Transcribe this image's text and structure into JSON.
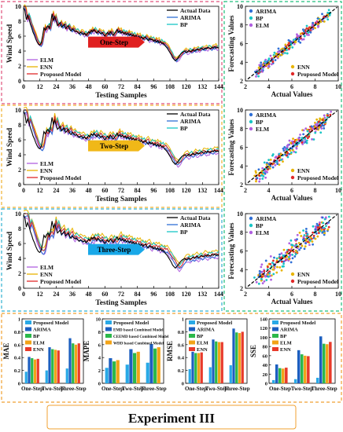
{
  "footer": {
    "label": "Experiment III"
  },
  "series_colors": {
    "Actual Data": "#000000",
    "ARIMA": "#2f6fd6",
    "BP": "#18c5c5",
    "ELM": "#b060e0",
    "ENN": "#e8b400",
    "Proposed Model": "#e02828"
  },
  "bar_colors": [
    "#29a9e6",
    "#1c5fbf",
    "#2bb84a",
    "#f2a318",
    "#e83a2a"
  ],
  "panel_border_colors": {
    "one": "#e0507a",
    "two": "#f0b030",
    "three": "#30b0d0",
    "scatter": "#1fbf7a",
    "bars": "#f0a030"
  },
  "chart_data": [
    {
      "type": "line",
      "id": "ts_one",
      "step_label": "One-Step",
      "arrow_color": "#e02020",
      "xlabel": "Testing Samples",
      "ylabel": "Wind Speed",
      "xlim": [
        0,
        144
      ],
      "ylim": [
        0,
        10
      ],
      "xticks": [
        "0",
        "12",
        "24",
        "36",
        "48",
        "60",
        "72",
        "84",
        "96",
        "108",
        "120",
        "132",
        "144"
      ],
      "yticks": [
        "0",
        "2",
        "4",
        "6",
        "8",
        "10"
      ],
      "legend_top": [
        "Actual Data",
        "ARIMA",
        "BP"
      ],
      "legend_bottom": [
        "ELM",
        "ENN",
        "Proposed Model"
      ],
      "actual": [
        9.8,
        9.4,
        8.2,
        8.8,
        8.3,
        7.6,
        7.1,
        6.5,
        6.1,
        5.6,
        5.2,
        4.9,
        4.8,
        5.1,
        6.0,
        7.1,
        6.8,
        7.2,
        7.4,
        7.0,
        7.8,
        9.0,
        8.1,
        8.6,
        8.0,
        7.4,
        7.6,
        7.8,
        7.2,
        7.4,
        7.6,
        7.0,
        7.2,
        7.4,
        6.9,
        6.7,
        7.0,
        6.8,
        6.6,
        6.7,
        6.5,
        6.3,
        6.5,
        6.4,
        6.2,
        6.4,
        6.1,
        6.3,
        6.6,
        6.4,
        6.8,
        6.6,
        6.9,
        6.6,
        6.4,
        6.7,
        6.5,
        6.3,
        6.5,
        6.2,
        6.0,
        6.3,
        6.5,
        6.2,
        6.6,
        6.4,
        6.1,
        6.3,
        6.6,
        6.9,
        6.5,
        6.7,
        6.4,
        6.6,
        6.3,
        6.5,
        6.2,
        6.4,
        6.1,
        6.3,
        6.0,
        6.2,
        5.9,
        6.1,
        5.8,
        6.0,
        5.7,
        5.9,
        5.6,
        5.8,
        5.9,
        5.6,
        5.4,
        5.7,
        5.5,
        5.6,
        5.3,
        5.5,
        5.2,
        5.4,
        5.1,
        5.3,
        5.0,
        5.1,
        4.8,
        4.6,
        4.4,
        4.1,
        3.8,
        3.5,
        3.1,
        2.9,
        2.7,
        2.9,
        3.1,
        3.4,
        3.6,
        3.8,
        3.9,
        4.0,
        3.8,
        3.9,
        4.1,
        3.9,
        4.0,
        4.2,
        4.0,
        4.1,
        4.3,
        4.1,
        4.2,
        4.4,
        4.3,
        4.2,
        4.4,
        4.3,
        4.5,
        4.4,
        4.3,
        4.5,
        4.4,
        4.6,
        4.4,
        4.5,
        4.4
      ],
      "offsets": {
        "ARIMA": -0.1,
        "BP": 0.18,
        "ELM": -0.2,
        "ENN": 0.3,
        "Proposed Model": 0.06
      },
      "lag": 1
    },
    {
      "type": "line",
      "id": "ts_two",
      "step_label": "Two-Step",
      "arrow_color": "#f0b818",
      "xlabel": "Testing Samples",
      "ylabel": "Wind Speed",
      "xlim": [
        0,
        144
      ],
      "ylim": [
        0,
        10
      ],
      "xticks": [
        "0",
        "12",
        "24",
        "36",
        "48",
        "60",
        "72",
        "84",
        "96",
        "108",
        "120",
        "132",
        "144"
      ],
      "yticks": [
        "0",
        "2",
        "4",
        "6",
        "8",
        "10"
      ],
      "legend_top": [
        "Actual Data",
        "ARIMA",
        "BP"
      ],
      "legend_bottom": [
        "ELM",
        "ENN",
        "Proposed Model"
      ],
      "actual": [
        9.8,
        9.4,
        8.2,
        8.8,
        8.3,
        7.6,
        7.1,
        6.5,
        6.1,
        5.6,
        5.2,
        4.9,
        4.8,
        5.1,
        6.0,
        7.1,
        6.8,
        7.2,
        7.4,
        7.0,
        7.8,
        9.0,
        8.1,
        8.6,
        8.0,
        7.4,
        7.6,
        7.8,
        7.2,
        7.4,
        7.6,
        7.0,
        7.2,
        7.4,
        6.9,
        6.7,
        7.0,
        6.8,
        6.6,
        6.7,
        6.5,
        6.3,
        6.5,
        6.4,
        6.2,
        6.4,
        6.1,
        6.3,
        6.6,
        6.4,
        6.8,
        6.6,
        6.9,
        6.6,
        6.4,
        6.7,
        6.5,
        6.3,
        6.5,
        6.2,
        6.0,
        6.3,
        6.5,
        6.2,
        6.6,
        6.4,
        6.1,
        6.3,
        6.6,
        6.9,
        6.5,
        6.7,
        6.4,
        6.6,
        6.3,
        6.5,
        6.2,
        6.4,
        6.1,
        6.3,
        6.0,
        6.2,
        5.9,
        6.1,
        5.8,
        6.0,
        5.7,
        5.9,
        5.6,
        5.8,
        5.9,
        5.6,
        5.4,
        5.7,
        5.5,
        5.6,
        5.3,
        5.5,
        5.2,
        5.4,
        5.1,
        5.3,
        5.0,
        5.1,
        4.8,
        4.6,
        4.4,
        4.1,
        3.8,
        3.5,
        3.1,
        2.9,
        2.7,
        2.9,
        3.1,
        3.4,
        3.6,
        3.8,
        3.9,
        4.0,
        3.8,
        3.9,
        4.1,
        3.9,
        4.0,
        4.2,
        4.0,
        4.1,
        4.3,
        4.1,
        4.2,
        4.4,
        4.3,
        4.2,
        4.4,
        4.3,
        4.5,
        4.4,
        4.3,
        4.5,
        4.4,
        4.6,
        4.4,
        4.5,
        4.4
      ],
      "offsets": {
        "ARIMA": -0.15,
        "BP": 0.25,
        "ELM": -0.3,
        "ENN": 0.45,
        "Proposed Model": 0.1
      },
      "lag": 2
    },
    {
      "type": "line",
      "id": "ts_three",
      "step_label": "Three-Step",
      "arrow_color": "#18a8e8",
      "xlabel": "Testing Samples",
      "ylabel": "Wind Speed",
      "xlim": [
        0,
        144
      ],
      "ylim": [
        0,
        10
      ],
      "xticks": [
        "0",
        "12",
        "24",
        "36",
        "48",
        "60",
        "72",
        "84",
        "96",
        "108",
        "120",
        "132",
        "144"
      ],
      "yticks": [
        "0",
        "2",
        "4",
        "6",
        "8",
        "10"
      ],
      "legend_top": [
        "Actual Data",
        "ARIMA",
        "BP"
      ],
      "legend_bottom": [
        "ELM",
        "ENN",
        "Proposed Model"
      ],
      "actual": [
        9.8,
        9.4,
        8.2,
        8.8,
        8.3,
        7.6,
        7.1,
        6.5,
        6.1,
        5.6,
        5.2,
        4.9,
        4.8,
        5.1,
        6.0,
        7.1,
        6.8,
        7.2,
        7.4,
        7.0,
        7.8,
        9.0,
        8.1,
        8.6,
        8.0,
        7.4,
        7.6,
        7.8,
        7.2,
        7.4,
        7.6,
        7.0,
        7.2,
        7.4,
        6.9,
        6.7,
        7.0,
        6.8,
        6.6,
        6.7,
        6.5,
        6.3,
        6.5,
        6.4,
        6.2,
        6.4,
        6.1,
        6.3,
        6.6,
        6.4,
        6.8,
        6.6,
        6.9,
        6.6,
        6.4,
        6.7,
        6.5,
        6.3,
        6.5,
        6.2,
        6.0,
        6.3,
        6.5,
        6.2,
        6.6,
        6.4,
        6.1,
        6.3,
        6.6,
        6.9,
        6.5,
        6.7,
        6.4,
        6.6,
        6.3,
        6.5,
        6.2,
        6.4,
        6.1,
        6.3,
        6.0,
        6.2,
        5.9,
        6.1,
        5.8,
        6.0,
        5.7,
        5.9,
        5.6,
        5.8,
        5.9,
        5.6,
        5.4,
        5.7,
        5.5,
        5.6,
        5.3,
        5.5,
        5.2,
        5.4,
        5.1,
        5.3,
        5.0,
        5.1,
        4.8,
        4.6,
        4.4,
        4.1,
        3.8,
        3.5,
        3.1,
        2.9,
        2.7,
        2.9,
        3.1,
        3.4,
        3.6,
        3.8,
        3.9,
        4.0,
        3.8,
        3.9,
        4.1,
        3.9,
        4.0,
        4.2,
        4.0,
        4.1,
        4.3,
        4.1,
        4.2,
        4.4,
        4.3,
        4.2,
        4.4,
        4.3,
        4.5,
        4.4,
        4.3,
        4.5,
        4.4,
        4.6,
        4.4,
        4.5,
        4.4
      ],
      "offsets": {
        "ARIMA": -0.2,
        "BP": 0.3,
        "ELM": -0.35,
        "ENN": 0.55,
        "Proposed Model": 0.12
      },
      "lag": 3
    },
    {
      "type": "scatter",
      "id": "sc_one",
      "xlabel": "Actual Values",
      "ylabel": "Forecasting Values",
      "xlim": [
        2,
        10
      ],
      "ylim": [
        2,
        10
      ],
      "xticks": [
        "2",
        "4",
        "6",
        "8",
        "10"
      ],
      "yticks": [
        "2",
        "4",
        "6",
        "8",
        "10"
      ],
      "legend_top": [
        "ARIMA",
        "BP",
        "ELM"
      ],
      "legend_bottom": [
        "ENN",
        "Proposed Model"
      ],
      "spread": 0.45
    },
    {
      "type": "scatter",
      "id": "sc_two",
      "xlabel": "Actual Values",
      "ylabel": "Forecasting Values",
      "xlim": [
        2,
        10
      ],
      "ylim": [
        2,
        10
      ],
      "xticks": [
        "2",
        "4",
        "6",
        "8",
        "10"
      ],
      "yticks": [
        "2",
        "4",
        "6",
        "8",
        "10"
      ],
      "legend_top": [
        "ARIMA",
        "BP",
        "ELM"
      ],
      "legend_bottom": [
        "ENN",
        "Proposed Model"
      ],
      "spread": 0.7
    },
    {
      "type": "scatter",
      "id": "sc_three",
      "xlabel": "Actual Values",
      "ylabel": "Forecasting Values",
      "xlim": [
        2,
        10
      ],
      "ylim": [
        2,
        10
      ],
      "xticks": [
        "2",
        "4",
        "6",
        "8",
        "10"
      ],
      "yticks": [
        "2",
        "4",
        "6",
        "8",
        "10"
      ],
      "legend_top": [
        "ARIMA",
        "BP",
        "ELM"
      ],
      "legend_bottom": [
        "ENN",
        "Proposed Model"
      ],
      "spread": 0.9
    },
    {
      "type": "bar",
      "id": "bar_mae",
      "ylabel": "MAE",
      "categories": [
        "One-Step",
        "Two-Step",
        "Three-Step"
      ],
      "ylim": [
        0,
        1
      ],
      "yticks": [
        "0",
        "0.2",
        "0.4",
        "0.6",
        "0.8",
        "1"
      ],
      "series": [
        {
          "name": "Proposed Model",
          "values": [
            0.18,
            0.2,
            0.23
          ]
        },
        {
          "name": "ARIMA",
          "values": [
            0.41,
            0.56,
            0.7
          ]
        },
        {
          "name": "BP",
          "values": [
            0.39,
            0.53,
            0.62
          ]
        },
        {
          "name": "ELM",
          "values": [
            0.37,
            0.52,
            0.6
          ]
        },
        {
          "name": "ENN",
          "values": [
            0.38,
            0.51,
            0.62
          ]
        }
      ]
    },
    {
      "type": "bar",
      "id": "bar_mape",
      "ylabel": "MAPE",
      "categories": [
        "One-Step",
        "Two-Step",
        "Three-Step"
      ],
      "ylim": [
        0,
        10
      ],
      "yticks": [
        "0",
        "2",
        "4",
        "6",
        "8",
        "10"
      ],
      "series": [
        {
          "name": "Proposed Model",
          "values": [
            2.4,
            2.9,
            3.2
          ]
        },
        {
          "name": "EMD based Combined Model",
          "values": [
            3.9,
            5.3,
            6.1
          ]
        },
        {
          "name": "CEEMD based Combined Model",
          "values": [
            3.4,
            4.7,
            5.4
          ]
        },
        {
          "name": "WDD based Combined Model",
          "values": [
            3.6,
            4.9,
            5.6
          ]
        }
      ]
    },
    {
      "type": "bar",
      "id": "bar_rmse",
      "ylabel": "RMSE",
      "categories": [
        "One-Step",
        "Two-Step",
        "Three-Step"
      ],
      "ylim": [
        0,
        1
      ],
      "yticks": [
        "0",
        "0.2",
        "0.4",
        "0.6",
        "0.8",
        "1"
      ],
      "series": [
        {
          "name": "Proposed Model",
          "values": [
            0.22,
            0.25,
            0.28
          ]
        },
        {
          "name": "ARIMA",
          "values": [
            0.49,
            0.68,
            0.85
          ]
        },
        {
          "name": "BP",
          "values": [
            0.47,
            0.65,
            0.79
          ]
        },
        {
          "name": "ELM",
          "values": [
            0.47,
            0.64,
            0.78
          ]
        },
        {
          "name": "ENN",
          "values": [
            0.48,
            0.64,
            0.8
          ]
        }
      ]
    },
    {
      "type": "bar",
      "id": "bar_sse",
      "ylabel": "SSE",
      "categories": [
        "One-Step",
        "Two-Step",
        "Three-Step"
      ],
      "ylim": [
        0,
        140
      ],
      "yticks": [
        "0",
        "20",
        "40",
        "60",
        "80",
        "100",
        "120",
        "140"
      ],
      "series": [
        {
          "name": "Proposed Model",
          "values": [
            7,
            9,
            12
          ]
        },
        {
          "name": "ARIMA",
          "values": [
            41,
            72,
            102
          ]
        },
        {
          "name": "BP",
          "values": [
            33,
            63,
            86
          ]
        },
        {
          "name": "ELM",
          "values": [
            32,
            60,
            85
          ]
        },
        {
          "name": "ENN",
          "values": [
            34,
            59,
            90
          ]
        }
      ]
    }
  ]
}
